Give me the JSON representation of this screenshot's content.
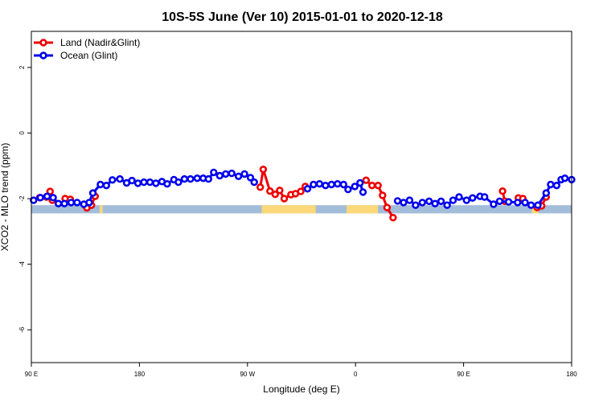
{
  "chart_data": {
    "type": "line",
    "title": "10S-5S June (Ver 10)   2015-01-01 to 2020-12-18",
    "xlabel": "Longitude (deg E)",
    "ylabel": "XCO2 - MLO trend (ppm)",
    "xlim": [
      90,
      450
    ],
    "ylim": [
      -7,
      3.1
    ],
    "x_ticks": [
      {
        "value": 90,
        "label": "90 E"
      },
      {
        "value": 162,
        "label": "180"
      },
      {
        "value": 234,
        "label": "90 W"
      },
      {
        "value": 306,
        "label": "0"
      },
      {
        "value": 378,
        "label": "90 E"
      },
      {
        "value": 450,
        "label": "180"
      }
    ],
    "y_ticks": [
      {
        "value": 2,
        "label": "2"
      },
      {
        "value": 0,
        "label": "0"
      },
      {
        "value": -2,
        "label": "-2"
      },
      {
        "value": -4,
        "label": "-4"
      },
      {
        "value": -6,
        "label": "-6"
      }
    ],
    "grid": false,
    "legend_position": "top-left",
    "surface_strip": {
      "y_range": [
        -2.45,
        -2.2
      ],
      "ocean_color": "#a3bcd9",
      "land_color": "#fbd879",
      "land_segments": [
        [
          135.5,
          137.5
        ],
        [
          243.5,
          279.5
        ],
        [
          300,
          321
        ],
        [
          423.5,
          428
        ]
      ]
    },
    "series": [
      {
        "name": "Land (Nadir&Glint)",
        "color": "#ee0000",
        "points": [
          [
            95.5,
            -1.97
          ],
          [
            100,
            -1.95
          ],
          [
            102.5,
            -1.78
          ],
          [
            104,
            -2.05
          ],
          [
            112.5,
            -2.0
          ],
          [
            116,
            -2.02
          ],
          [
            127,
            -2.28
          ],
          [
            130,
            -2.2
          ],
          [
            132.5,
            -1.93
          ],
          [
            242.5,
            -1.65
          ],
          [
            244.5,
            -1.11
          ],
          [
            249,
            -1.77
          ],
          [
            252.5,
            -1.87
          ],
          [
            255.5,
            -1.75
          ],
          [
            258.5,
            -2.0
          ],
          [
            263,
            -1.88
          ],
          [
            266,
            -1.85
          ],
          [
            269.5,
            -1.78
          ],
          [
            272.5,
            -1.63
          ],
          [
            313,
            -1.44
          ],
          [
            317,
            -1.6
          ],
          [
            321,
            -1.6
          ],
          [
            324,
            -1.9
          ],
          [
            327,
            -2.27
          ],
          [
            331,
            -2.58
          ],
          [
            404,
            -1.77
          ],
          [
            405.5,
            -2.08
          ],
          [
            414.5,
            -1.98
          ],
          [
            417.5,
            -2.0
          ],
          [
            427,
            -2.27
          ],
          [
            430,
            -2.22
          ],
          [
            433,
            -1.95
          ]
        ]
      },
      {
        "name": "Ocean (Glint)",
        "color": "#0000ee",
        "points": [
          [
            91.5,
            -2.05
          ],
          [
            96,
            -1.97
          ],
          [
            100.5,
            -1.93
          ],
          [
            104.5,
            -1.97
          ],
          [
            108,
            -2.15
          ],
          [
            112,
            -2.15
          ],
          [
            116.5,
            -2.12
          ],
          [
            120.5,
            -2.12
          ],
          [
            125,
            -2.17
          ],
          [
            128.5,
            -2.12
          ],
          [
            131,
            -1.83
          ],
          [
            136,
            -1.57
          ],
          [
            140,
            -1.6
          ],
          [
            144,
            -1.43
          ],
          [
            149,
            -1.4
          ],
          [
            153.5,
            -1.52
          ],
          [
            157,
            -1.45
          ],
          [
            161,
            -1.53
          ],
          [
            165,
            -1.5
          ],
          [
            169,
            -1.5
          ],
          [
            173,
            -1.53
          ],
          [
            177,
            -1.48
          ],
          [
            180.5,
            -1.55
          ],
          [
            185,
            -1.42
          ],
          [
            188,
            -1.5
          ],
          [
            192,
            -1.4
          ],
          [
            196,
            -1.4
          ],
          [
            200.5,
            -1.38
          ],
          [
            204.5,
            -1.38
          ],
          [
            208,
            -1.4
          ],
          [
            211.5,
            -1.2
          ],
          [
            215.5,
            -1.3
          ],
          [
            219.5,
            -1.25
          ],
          [
            223.5,
            -1.23
          ],
          [
            228,
            -1.32
          ],
          [
            232,
            -1.25
          ],
          [
            236,
            -1.36
          ],
          [
            238.5,
            -1.5
          ],
          [
            274,
            -1.7
          ],
          [
            278,
            -1.57
          ],
          [
            282,
            -1.55
          ],
          [
            286,
            -1.6
          ],
          [
            290,
            -1.57
          ],
          [
            294,
            -1.55
          ],
          [
            298,
            -1.57
          ],
          [
            301,
            -1.72
          ],
          [
            305.5,
            -1.63
          ],
          [
            309,
            -1.52
          ],
          [
            311,
            -1.8
          ],
          [
            334,
            -2.07
          ],
          [
            338,
            -2.12
          ],
          [
            342,
            -2.05
          ],
          [
            346,
            -2.2
          ],
          [
            350.5,
            -2.12
          ],
          [
            355,
            -2.08
          ],
          [
            359,
            -2.15
          ],
          [
            363,
            -2.08
          ],
          [
            367,
            -2.2
          ],
          [
            371,
            -2.05
          ],
          [
            375,
            -1.95
          ],
          [
            380,
            -2.05
          ],
          [
            384,
            -1.98
          ],
          [
            389,
            -1.93
          ],
          [
            392,
            -1.95
          ],
          [
            398,
            -2.17
          ],
          [
            402,
            -2.08
          ],
          [
            408,
            -2.1
          ],
          [
            414,
            -2.12
          ],
          [
            419,
            -2.12
          ],
          [
            423,
            -2.2
          ],
          [
            427.5,
            -2.2
          ],
          [
            433,
            -1.83
          ],
          [
            436,
            -1.57
          ],
          [
            440,
            -1.6
          ],
          [
            443,
            -1.42
          ],
          [
            445.5,
            -1.38
          ],
          [
            450,
            -1.42
          ]
        ]
      }
    ]
  }
}
